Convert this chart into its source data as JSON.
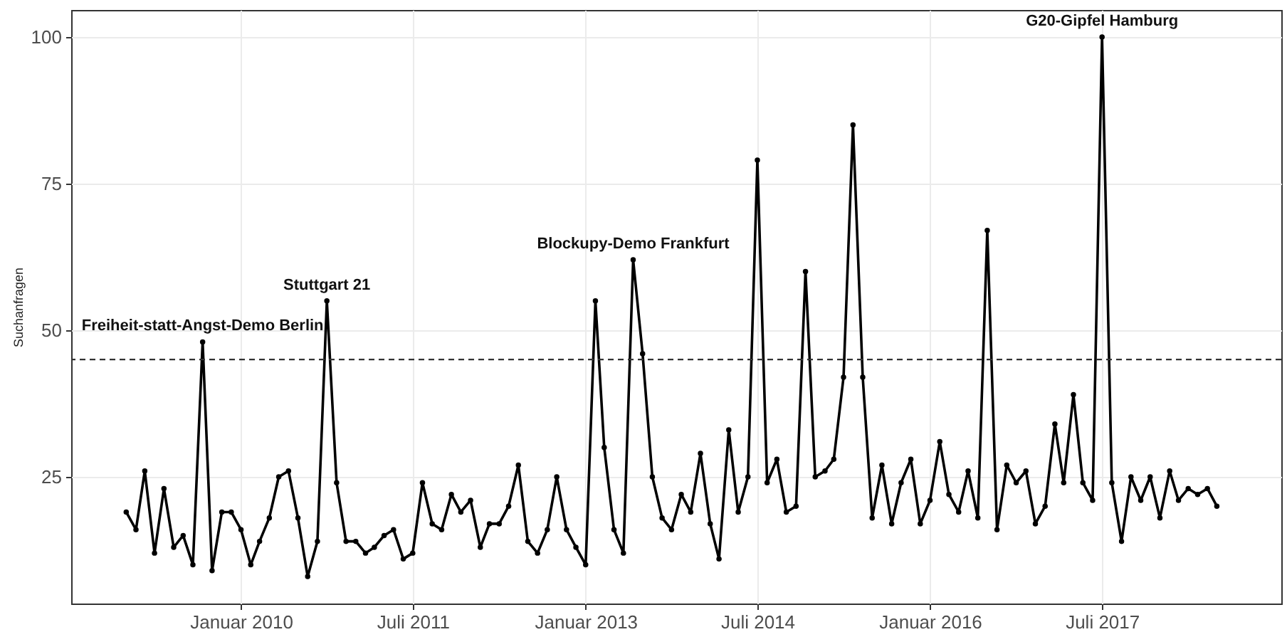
{
  "chart_data": {
    "type": "line",
    "ylabel": "Suchanfragen",
    "x": [
      "2009-01",
      "2009-02",
      "2009-03",
      "2009-04",
      "2009-05",
      "2009-06",
      "2009-07",
      "2009-08",
      "2009-09",
      "2009-10",
      "2009-11",
      "2009-12",
      "2010-01",
      "2010-02",
      "2010-03",
      "2010-04",
      "2010-05",
      "2010-06",
      "2010-07",
      "2010-08",
      "2010-09",
      "2010-10",
      "2010-11",
      "2010-12",
      "2011-01",
      "2011-02",
      "2011-03",
      "2011-04",
      "2011-05",
      "2011-06",
      "2011-07",
      "2011-08",
      "2011-09",
      "2011-10",
      "2011-11",
      "2011-12",
      "2012-01",
      "2012-02",
      "2012-03",
      "2012-04",
      "2012-05",
      "2012-06",
      "2012-07",
      "2012-08",
      "2012-09",
      "2012-10",
      "2012-11",
      "2012-12",
      "2013-01",
      "2013-02",
      "2013-03",
      "2013-04",
      "2013-05",
      "2013-06",
      "2013-07",
      "2013-08",
      "2013-09",
      "2013-10",
      "2013-11",
      "2013-12",
      "2014-01",
      "2014-02",
      "2014-03",
      "2014-04",
      "2014-05",
      "2014-06",
      "2014-07",
      "2014-08",
      "2014-09",
      "2014-10",
      "2014-11",
      "2014-12",
      "2015-01",
      "2015-02",
      "2015-03",
      "2015-04",
      "2015-05",
      "2015-06",
      "2015-07",
      "2015-08",
      "2015-09",
      "2015-10",
      "2015-11",
      "2015-12",
      "2016-01",
      "2016-02",
      "2016-03",
      "2016-04",
      "2016-05",
      "2016-06",
      "2016-07",
      "2016-08",
      "2016-09",
      "2016-10",
      "2016-11",
      "2016-12",
      "2017-01",
      "2017-02",
      "2017-03",
      "2017-04",
      "2017-05",
      "2017-06",
      "2017-07",
      "2017-08",
      "2017-09",
      "2017-10",
      "2017-11",
      "2017-12",
      "2018-01",
      "2018-02",
      "2018-03",
      "2018-04",
      "2018-05",
      "2018-06",
      "2018-07"
    ],
    "series": [
      {
        "color": "#000000",
        "values": [
          19,
          16,
          26,
          12,
          23,
          13,
          15,
          10,
          48,
          9,
          19,
          19,
          16,
          10,
          14,
          18,
          25,
          26,
          18,
          8,
          14,
          55,
          24,
          14,
          14,
          12,
          13,
          15,
          16,
          11,
          12,
          24,
          17,
          16,
          22,
          19,
          21,
          13,
          17,
          17,
          20,
          27,
          14,
          12,
          16,
          25,
          16,
          13,
          10,
          55,
          30,
          16,
          12,
          62,
          46,
          25,
          18,
          16,
          22,
          19,
          29,
          17,
          11,
          33,
          19,
          25,
          79,
          24,
          28,
          19,
          20,
          60,
          25,
          26,
          28,
          42,
          85,
          42,
          18,
          27,
          17,
          24,
          28,
          17,
          21,
          31,
          22,
          19,
          26,
          18,
          67,
          16,
          27,
          24,
          26,
          17,
          20,
          34,
          24,
          39,
          24,
          21,
          100,
          24,
          14,
          25,
          21,
          25,
          18,
          26,
          21,
          23,
          22,
          23,
          20
        ]
      }
    ],
    "xlim": [
      "2008-07-10",
      "2019-01-22"
    ],
    "xticks": [
      {
        "value": "2010-01",
        "label": "Januar 2010"
      },
      {
        "value": "2011-07",
        "label": "Juli 2011"
      },
      {
        "value": "2013-01",
        "label": "Januar 2013"
      },
      {
        "value": "2014-07",
        "label": "Juli 2014"
      },
      {
        "value": "2016-01",
        "label": "Januar 2016"
      },
      {
        "value": "2017-07",
        "label": "Juli 2017"
      }
    ],
    "ylim": [
      3.4,
      104.6
    ],
    "yticks": [
      25,
      50,
      75,
      100
    ],
    "ref_lines": [
      {
        "axis": "y",
        "value": 45,
        "color": "#333333",
        "line_style": "dashed"
      }
    ],
    "annotations": [
      {
        "text": "Freiheit-statt-Angst-Demo Berlin",
        "x": "2009-09",
        "y": 48
      },
      {
        "text": "Stuttgart 21",
        "x": "2010-10",
        "y": 55
      },
      {
        "text": "Blockupy-Demo Frankfurt",
        "x": "2013-06",
        "y": 62
      },
      {
        "text": "G20-Gipfel Hamburg",
        "x": "2017-07",
        "y": 100
      }
    ],
    "grid": true,
    "marker": "circle",
    "line_style": "solid"
  }
}
